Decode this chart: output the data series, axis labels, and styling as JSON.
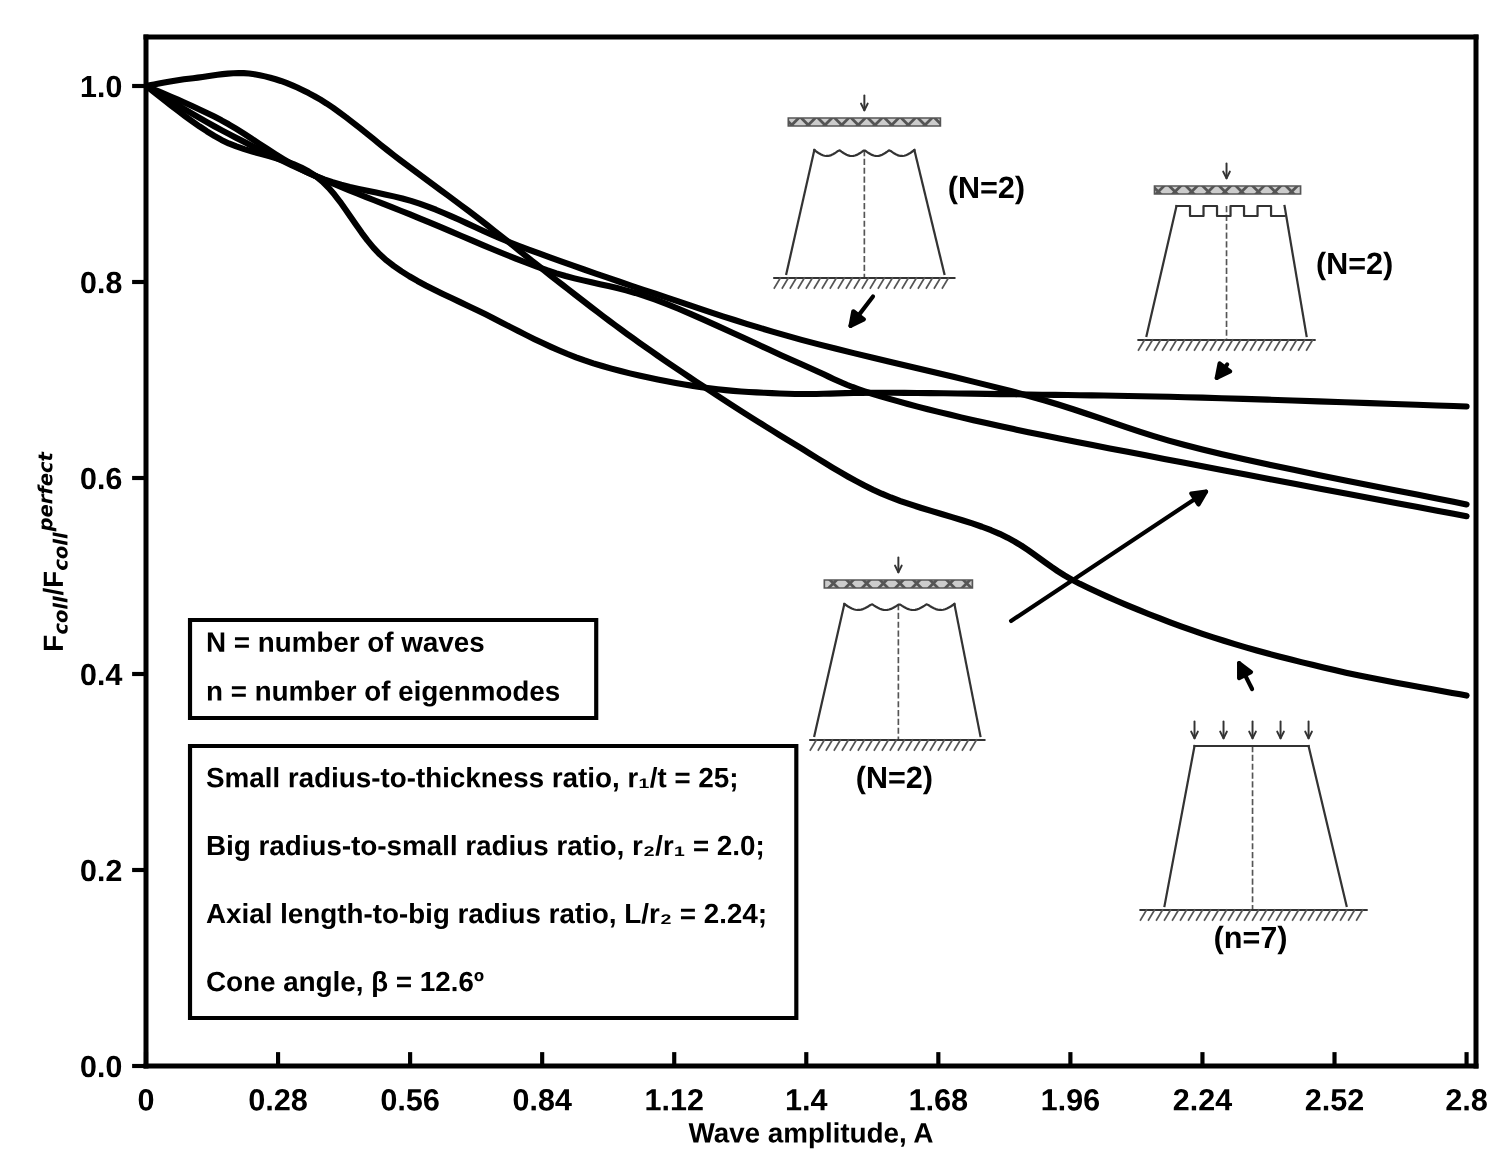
{
  "chart_data": {
    "type": "line",
    "xlabel": "Wave amplitude, A",
    "ylabel": "F$_{coll}$/F$_{coll}$$^{perfect}$",
    "xlim": [
      0,
      2.82
    ],
    "ylim": [
      0,
      1.05
    ],
    "xticks": [
      0,
      0.28,
      0.56,
      0.84,
      1.12,
      1.4,
      1.68,
      1.96,
      2.24,
      2.52,
      2.8
    ],
    "yticks": [
      {
        "value": 0,
        "label": "0.0"
      },
      0.2,
      0.4,
      0.6,
      0.8,
      {
        "value": 1,
        "label": "1.0"
      }
    ],
    "grid": false,
    "legend": false,
    "marker": "none",
    "line_style": "solid",
    "series": [
      {
        "color": "#000000",
        "x": [
          0,
          0.1,
          0.23,
          0.37,
          0.54,
          0.71,
          0.87,
          1.02,
          1.18,
          1.36,
          1.56,
          1.81,
          1.98,
          2.24,
          2.52,
          2.8
        ],
        "values": [
          1.0,
          1.008,
          1.012,
          0.986,
          0.924,
          0.863,
          0.802,
          0.747,
          0.694,
          0.639,
          0.584,
          0.543,
          0.492,
          0.441,
          0.404,
          0.378
        ]
      },
      {
        "color": "#000000",
        "x": [
          0,
          0.16,
          0.36,
          0.51,
          0.72,
          0.93,
          1.16,
          1.36,
          1.56,
          1.9,
          2.24,
          2.8
        ],
        "values": [
          1.0,
          0.945,
          0.908,
          0.822,
          0.767,
          0.72,
          0.694,
          0.686,
          0.687,
          0.685,
          0.682,
          0.673
        ]
      },
      {
        "color": "#000000",
        "x": [
          0,
          0.16,
          0.36,
          0.58,
          0.79,
          1.08,
          1.39,
          1.87,
          2.24,
          2.8
        ],
        "values": [
          1.0,
          0.965,
          0.908,
          0.88,
          0.837,
          0.788,
          0.741,
          0.684,
          0.629,
          0.573
        ]
      },
      {
        "color": "#000000",
        "x": [
          0,
          0.16,
          0.36,
          0.58,
          0.85,
          1.08,
          1.39,
          1.54,
          1.81,
          2.24,
          2.8
        ],
        "values": [
          1.0,
          0.955,
          0.908,
          0.865,
          0.812,
          0.782,
          0.716,
          0.686,
          0.653,
          0.612,
          0.561
        ]
      }
    ],
    "annotations": [
      "(N=2)",
      "(N=2)",
      "(N=2)",
      "(n=7)",
      "N = number of waves",
      "n = number of eigenmodes",
      "Small radius-to-thickness ratio, r₁/t = 25;",
      "Big radius-to-small radius ratio, r₂/r₁ = 2.0;",
      "Axial length-to-big radius ratio, L/r₂ = 2.24;",
      "Cone angle, β = 12.6º"
    ]
  }
}
